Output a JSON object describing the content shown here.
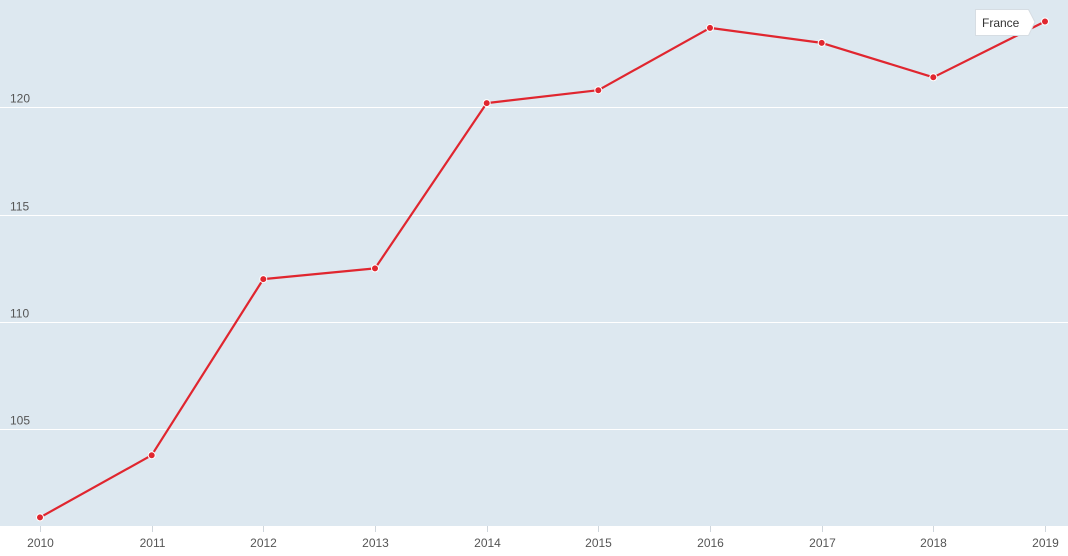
{
  "chart_data": {
    "type": "line",
    "x": [
      "2010",
      "2011",
      "2012",
      "2013",
      "2014",
      "2015",
      "2016",
      "2017",
      "2018",
      "2019"
    ],
    "series": [
      {
        "name": "France",
        "values": [
          100.9,
          103.8,
          112.0,
          112.5,
          120.2,
          120.8,
          123.7,
          123.0,
          121.4,
          124.0
        ]
      }
    ],
    "yticks": [
      105,
      110,
      115,
      120
    ],
    "ylim": [
      100.5,
      125.0
    ],
    "grid": true,
    "title": "",
    "xlabel": "",
    "ylabel": "",
    "colors": {
      "plot_background": "#dde8f0",
      "gridline": "#ffffff",
      "series_line": "#e0262f",
      "tick_text": "#555555"
    }
  }
}
